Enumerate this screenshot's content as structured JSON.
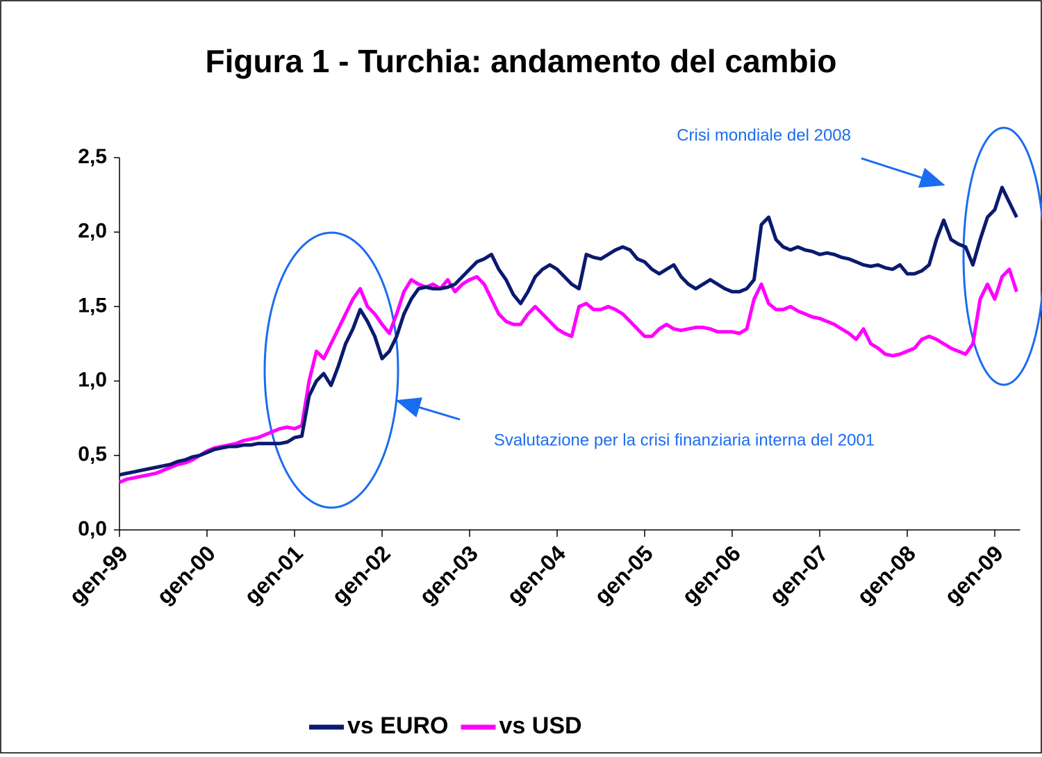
{
  "chart_data": {
    "type": "line",
    "title": "Figura 1 - Turchia: andamento del cambio",
    "x_start": "1999-01",
    "xlim": [
      "1999-01",
      "2009-04"
    ],
    "xticks": [
      {
        "value": "1999-01",
        "label": "gen-99"
      },
      {
        "value": "2000-01",
        "label": "gen-00"
      },
      {
        "value": "2001-01",
        "label": "gen-01"
      },
      {
        "value": "2002-01",
        "label": "gen-02"
      },
      {
        "value": "2003-01",
        "label": "gen-03"
      },
      {
        "value": "2004-01",
        "label": "gen-04"
      },
      {
        "value": "2005-01",
        "label": "gen-05"
      },
      {
        "value": "2006-01",
        "label": "gen-06"
      },
      {
        "value": "2007-01",
        "label": "gen-07"
      },
      {
        "value": "2008-01",
        "label": "gen-08"
      },
      {
        "value": "2009-01",
        "label": "gen-09"
      }
    ],
    "ylim": [
      0,
      2.5
    ],
    "yticks": [
      {
        "value": 0,
        "label": "0,0"
      },
      {
        "value": 0.5,
        "label": "0,5"
      },
      {
        "value": 1,
        "label": "1,0"
      },
      {
        "value": 1.5,
        "label": "1,5"
      },
      {
        "value": 2,
        "label": "2,0"
      },
      {
        "value": 2.5,
        "label": "2,5"
      }
    ],
    "grid": false,
    "legend": "bottom",
    "series": [
      {
        "name": "vs EURO",
        "color": "#0a1a6e",
        "values": [
          0.37,
          0.38,
          0.39,
          0.4,
          0.41,
          0.42,
          0.43,
          0.44,
          0.46,
          0.47,
          0.49,
          0.5,
          0.52,
          0.54,
          0.55,
          0.56,
          0.56,
          0.57,
          0.57,
          0.58,
          0.58,
          0.58,
          0.58,
          0.59,
          0.62,
          0.63,
          0.9,
          1.0,
          1.05,
          0.97,
          1.1,
          1.25,
          1.35,
          1.48,
          1.4,
          1.3,
          1.15,
          1.2,
          1.3,
          1.45,
          1.55,
          1.62,
          1.63,
          1.62,
          1.62,
          1.63,
          1.65,
          1.7,
          1.75,
          1.8,
          1.82,
          1.85,
          1.75,
          1.68,
          1.58,
          1.52,
          1.6,
          1.7,
          1.75,
          1.78,
          1.75,
          1.7,
          1.65,
          1.62,
          1.85,
          1.83,
          1.82,
          1.85,
          1.88,
          1.9,
          1.88,
          1.82,
          1.8,
          1.75,
          1.72,
          1.75,
          1.78,
          1.7,
          1.65,
          1.62,
          1.65,
          1.68,
          1.65,
          1.62,
          1.6,
          1.6,
          1.62,
          1.68,
          2.05,
          2.1,
          1.95,
          1.9,
          1.88,
          1.9,
          1.88,
          1.87,
          1.85,
          1.86,
          1.85,
          1.83,
          1.82,
          1.8,
          1.78,
          1.77,
          1.78,
          1.76,
          1.75,
          1.78,
          1.72,
          1.72,
          1.74,
          1.78,
          1.95,
          2.08,
          1.95,
          1.92,
          1.9,
          1.78,
          1.95,
          2.1,
          2.15,
          2.3,
          2.2,
          2.1
        ]
      },
      {
        "name": "vs USD",
        "color": "#ff00ff",
        "values": [
          0.32,
          0.34,
          0.35,
          0.36,
          0.37,
          0.38,
          0.4,
          0.42,
          0.44,
          0.45,
          0.47,
          0.5,
          0.53,
          0.55,
          0.56,
          0.57,
          0.58,
          0.6,
          0.61,
          0.62,
          0.64,
          0.66,
          0.68,
          0.69,
          0.68,
          0.7,
          1.0,
          1.2,
          1.15,
          1.25,
          1.35,
          1.45,
          1.55,
          1.62,
          1.5,
          1.45,
          1.38,
          1.32,
          1.45,
          1.6,
          1.68,
          1.65,
          1.63,
          1.65,
          1.62,
          1.68,
          1.6,
          1.65,
          1.68,
          1.7,
          1.65,
          1.55,
          1.45,
          1.4,
          1.38,
          1.38,
          1.45,
          1.5,
          1.45,
          1.4,
          1.35,
          1.32,
          1.3,
          1.5,
          1.52,
          1.48,
          1.48,
          1.5,
          1.48,
          1.45,
          1.4,
          1.35,
          1.3,
          1.3,
          1.35,
          1.38,
          1.35,
          1.34,
          1.35,
          1.36,
          1.36,
          1.35,
          1.33,
          1.33,
          1.33,
          1.32,
          1.35,
          1.55,
          1.65,
          1.52,
          1.48,
          1.48,
          1.5,
          1.47,
          1.45,
          1.43,
          1.42,
          1.4,
          1.38,
          1.35,
          1.32,
          1.28,
          1.35,
          1.25,
          1.22,
          1.18,
          1.17,
          1.18,
          1.2,
          1.22,
          1.28,
          1.3,
          1.28,
          1.25,
          1.22,
          1.2,
          1.18,
          1.25,
          1.55,
          1.65,
          1.55,
          1.7,
          1.75,
          1.6
        ]
      }
    ],
    "annotations": [
      "Crisi mondiale del 2008",
      "Svalutazione per la crisi finanziaria interna del 2001"
    ]
  }
}
